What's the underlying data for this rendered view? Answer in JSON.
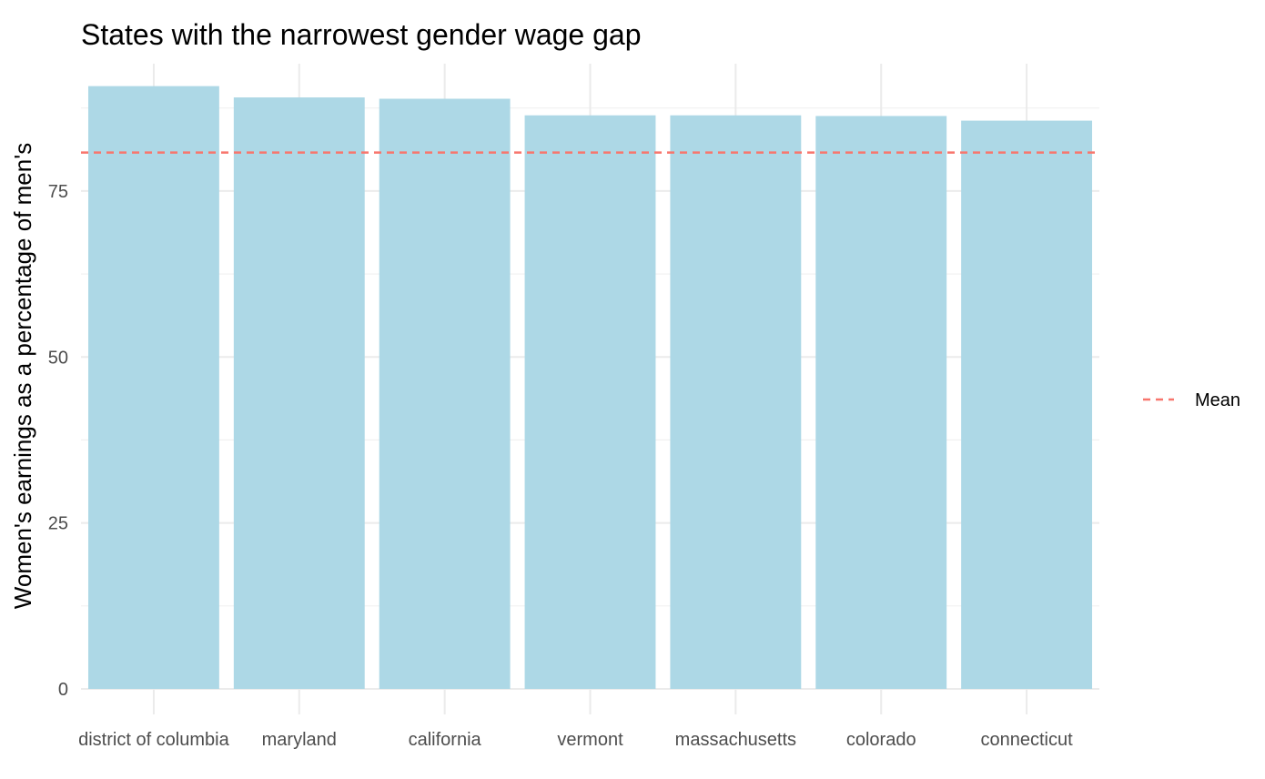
{
  "chart_data": {
    "type": "bar",
    "title": "States with the narrowest gender wage gap",
    "xlabel": "",
    "ylabel": "Women's earnings as a percentage of men's",
    "categories": [
      "district of columbia",
      "maryland",
      "california",
      "vermont",
      "massachusetts",
      "colorado",
      "connecticut"
    ],
    "values": [
      90.8,
      89.1,
      88.9,
      86.4,
      86.4,
      86.3,
      85.6
    ],
    "ylim": [
      0,
      95
    ],
    "yticks": [
      0,
      25,
      50,
      75
    ],
    "ytick_labels": [
      "0",
      "25",
      "50",
      "75"
    ],
    "bar_color": "#add8e6",
    "mean_value": 80.8,
    "mean_color": "#f8766d",
    "legend": {
      "position": "right",
      "entries": [
        "Mean"
      ]
    },
    "grid": true
  }
}
